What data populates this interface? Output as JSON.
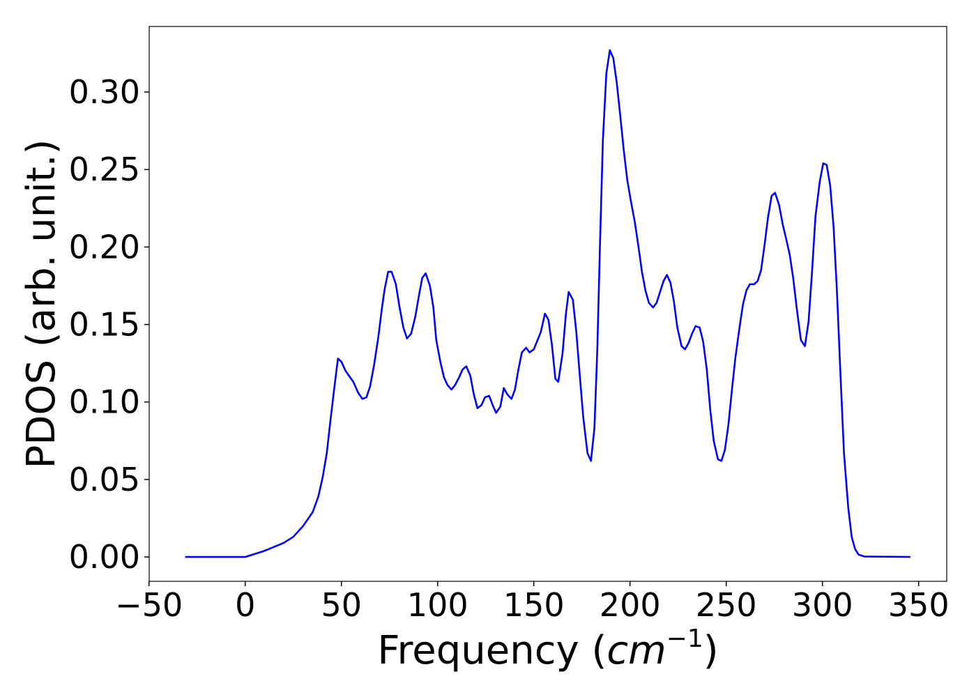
{
  "chart_data": {
    "type": "line",
    "xlabel": [
      "Frequency (",
      "cm",
      "−1",
      ")"
    ],
    "ylabel": "PDOS (arb. unit.)",
    "xlim": [
      -49.9,
      364.6
    ],
    "ylim": [
      -0.0157,
      0.3423
    ],
    "xticks": [
      {
        "value": -50,
        "label": "−50"
      },
      0,
      50,
      100,
      150,
      200,
      250,
      300,
      350
    ],
    "yticks": [
      {
        "value": 0,
        "label": "0.00"
      },
      {
        "value": 0.05,
        "label": "0.05"
      },
      {
        "value": 0.1,
        "label": "0.10"
      },
      {
        "value": 0.15,
        "label": "0.15"
      },
      {
        "value": 0.2,
        "label": "0.20"
      },
      {
        "value": 0.25,
        "label": "0.25"
      },
      {
        "value": 0.3,
        "label": "0.30"
      }
    ],
    "x": [
      -31.2,
      0,
      10.1,
      19.9,
      25,
      30.1,
      35.1,
      38,
      40.2,
      42.4,
      44.2,
      46.4,
      48.2,
      50,
      52.2,
      56.2,
      58.7,
      60.9,
      63,
      64.9,
      67,
      69.2,
      71,
      72.5,
      74.3,
      76.1,
      78.3,
      80.1,
      82.2,
      84.1,
      86.2,
      88.4,
      90.2,
      92,
      93.8,
      96,
      97.8,
      99.3,
      101.4,
      103.3,
      105.1,
      107.2,
      109.1,
      111.2,
      113,
      114.9,
      117,
      118.8,
      120.7,
      122.8,
      124.6,
      126.8,
      128.6,
      130.4,
      132.6,
      134.4,
      136.2,
      138.4,
      140.2,
      142,
      143.8,
      146,
      147.8,
      150,
      153.6,
      155.8,
      157.6,
      159.4,
      161.2,
      162.7,
      164.9,
      166.7,
      168.1,
      170.3,
      172.1,
      173.9,
      175.7,
      177.9,
      179.7,
      181.5,
      183,
      184.4,
      185.9,
      187.7,
      189.5,
      191.3,
      193.1,
      194.9,
      196.7,
      198.6,
      200.4,
      202.5,
      204.3,
      206.2,
      208,
      209.8,
      212,
      213.8,
      215.6,
      217.4,
      219.2,
      221,
      222.8,
      224.6,
      226.8,
      228.6,
      230.4,
      232.2,
      234.1,
      236.2,
      238,
      239.9,
      241.7,
      243.5,
      245.7,
      247.5,
      249.3,
      251.1,
      252.9,
      254.7,
      256.9,
      258.7,
      260.5,
      262.3,
      264.5,
      266.3,
      268.1,
      269.9,
      271.7,
      273.6,
      275.4,
      277.5,
      279.3,
      281.2,
      283,
      284.8,
      286.6,
      288.8,
      290.9,
      292.8,
      294.6,
      296.4,
      298.6,
      300.4,
      302.2,
      304,
      305.8,
      307.6,
      309.4,
      311.2,
      313.4,
      315.2,
      317,
      318.8,
      321.7,
      345.7
    ],
    "series": [
      {
        "color": "#0000ff",
        "values": [
          0,
          0,
          0.004,
          0.009,
          0.013,
          0.02,
          0.029,
          0.039,
          0.051,
          0.067,
          0.087,
          0.11,
          0.128,
          0.126,
          0.12,
          0.113,
          0.106,
          0.102,
          0.103,
          0.11,
          0.124,
          0.142,
          0.16,
          0.173,
          0.184,
          0.184,
          0.176,
          0.162,
          0.148,
          0.141,
          0.144,
          0.155,
          0.168,
          0.18,
          0.183,
          0.175,
          0.161,
          0.14,
          0.126,
          0.116,
          0.111,
          0.108,
          0.111,
          0.116,
          0.121,
          0.123,
          0.117,
          0.105,
          0.096,
          0.098,
          0.103,
          0.104,
          0.098,
          0.093,
          0.097,
          0.109,
          0.105,
          0.102,
          0.108,
          0.121,
          0.132,
          0.135,
          0.132,
          0.134,
          0.145,
          0.157,
          0.153,
          0.137,
          0.115,
          0.113,
          0.131,
          0.157,
          0.171,
          0.166,
          0.145,
          0.117,
          0.09,
          0.067,
          0.062,
          0.083,
          0.134,
          0.202,
          0.269,
          0.312,
          0.327,
          0.322,
          0.306,
          0.285,
          0.263,
          0.243,
          0.23,
          0.216,
          0.201,
          0.184,
          0.172,
          0.164,
          0.161,
          0.164,
          0.171,
          0.178,
          0.182,
          0.177,
          0.165,
          0.148,
          0.136,
          0.134,
          0.138,
          0.144,
          0.149,
          0.148,
          0.139,
          0.121,
          0.095,
          0.075,
          0.063,
          0.062,
          0.069,
          0.085,
          0.107,
          0.128,
          0.148,
          0.163,
          0.172,
          0.176,
          0.176,
          0.178,
          0.185,
          0.201,
          0.219,
          0.233,
          0.235,
          0.227,
          0.215,
          0.205,
          0.195,
          0.18,
          0.161,
          0.14,
          0.136,
          0.152,
          0.184,
          0.22,
          0.242,
          0.254,
          0.253,
          0.24,
          0.213,
          0.17,
          0.117,
          0.067,
          0.032,
          0.013,
          0.005,
          0.0015,
          0.0003,
          0
        ]
      }
    ]
  }
}
